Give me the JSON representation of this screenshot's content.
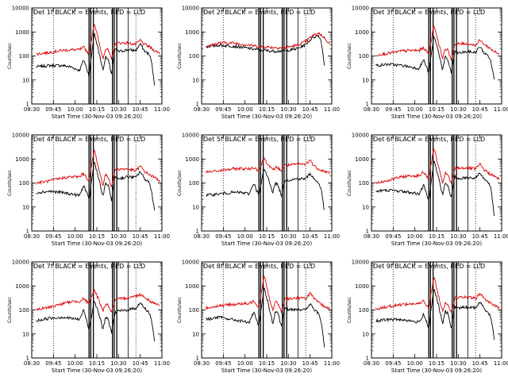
{
  "figure": {
    "yticks": [
      "1",
      "10",
      "100",
      "1000",
      "10000"
    ],
    "xticks": [
      "08:30",
      "09:45",
      "10:00",
      "10:15",
      "10:30",
      "10:45",
      "11:00"
    ],
    "ylabel": "Counts/sec",
    "xlabel": "Start Time (30-Nov-03 09:26:20)",
    "colors": {
      "events": "#000000",
      "lld": "#dd0000"
    }
  },
  "chart_data": [
    {
      "type": "line",
      "title": "Det 1f BLACK = Events, RED = LLD",
      "xlabel": "Start Time (30-Nov-03 09:26:20)",
      "ylabel": "Counts/sec",
      "yscale": "log",
      "ylim": [
        1,
        10000
      ],
      "xlim_minutes": [
        0,
        150
      ],
      "markers_minutes": [
        66,
        68,
        71,
        93,
        95,
        98
      ],
      "series": [
        {
          "name": "Events",
          "color": "#000000",
          "x": [
            5,
            20,
            35,
            45,
            55,
            60,
            66,
            72,
            78,
            82,
            85,
            88,
            92,
            96,
            100,
            110,
            120,
            125,
            130,
            135,
            138,
            142
          ],
          "y": [
            35,
            40,
            40,
            35,
            25,
            70,
            15,
            900,
            120,
            25,
            90,
            70,
            18,
            200,
            150,
            180,
            170,
            320,
            160,
            120,
            60,
            5
          ]
        },
        {
          "name": "LLD",
          "color": "#dd0000",
          "x": [
            5,
            20,
            35,
            45,
            55,
            60,
            66,
            72,
            78,
            82,
            85,
            88,
            92,
            96,
            100,
            110,
            120,
            125,
            130,
            135,
            140,
            148
          ],
          "y": [
            120,
            140,
            170,
            180,
            180,
            230,
            120,
            2500,
            300,
            80,
            200,
            180,
            70,
            320,
            350,
            350,
            300,
            450,
            300,
            250,
            180,
            130
          ]
        }
      ]
    },
    {
      "type": "line",
      "title": "Det 2f BLACK = Events, RED = LLD",
      "xlabel": "Start Time (30-Nov-03 09:26:20)",
      "ylabel": "Counts/sec",
      "yscale": "log",
      "ylim": [
        1,
        10000
      ],
      "xlim_minutes": [
        0,
        150
      ],
      "markers_minutes": [
        66,
        68,
        71,
        93,
        95,
        98
      ],
      "series": [
        {
          "name": "Events",
          "color": "#000000",
          "x": [
            5,
            20,
            35,
            50,
            65,
            80,
            95,
            110,
            120,
            128,
            135,
            138,
            142
          ],
          "y": [
            250,
            280,
            260,
            220,
            180,
            160,
            160,
            200,
            300,
            600,
            700,
            400,
            30
          ]
        },
        {
          "name": "LLD",
          "color": "#dd0000",
          "x": [
            5,
            20,
            35,
            50,
            65,
            80,
            95,
            110,
            120,
            128,
            135,
            142,
            148
          ],
          "y": [
            230,
            350,
            350,
            300,
            250,
            230,
            220,
            280,
            400,
            700,
            900,
            550,
            300
          ]
        }
      ]
    },
    {
      "type": "line",
      "title": "Det 3f BLACK = Events, RED = LLD",
      "xlabel": "Start Time (30-Nov-03 09:26:20)",
      "ylabel": "Counts/sec",
      "yscale": "log",
      "ylim": [
        1,
        10000
      ],
      "xlim_minutes": [
        0,
        150
      ],
      "markers_minutes": [
        66,
        68,
        71,
        93,
        95,
        98
      ],
      "series": [
        {
          "name": "Events",
          "color": "#000000",
          "x": [
            5,
            20,
            35,
            45,
            55,
            60,
            66,
            72,
            78,
            82,
            85,
            88,
            92,
            96,
            100,
            110,
            120,
            125,
            130,
            135,
            138,
            142
          ],
          "y": [
            40,
            45,
            40,
            35,
            30,
            70,
            20,
            700,
            120,
            25,
            90,
            70,
            20,
            150,
            130,
            150,
            140,
            250,
            130,
            100,
            50,
            8
          ]
        },
        {
          "name": "LLD",
          "color": "#dd0000",
          "x": [
            5,
            20,
            35,
            45,
            55,
            60,
            66,
            72,
            78,
            82,
            85,
            88,
            92,
            96,
            100,
            110,
            120,
            125,
            130,
            135,
            140,
            148
          ],
          "y": [
            110,
            130,
            160,
            170,
            170,
            220,
            120,
            2000,
            280,
            80,
            200,
            170,
            70,
            300,
            320,
            330,
            280,
            450,
            300,
            230,
            170,
            110
          ]
        }
      ]
    },
    {
      "type": "line",
      "title": "Det 4f BLACK = Events, RED = LLD",
      "xlabel": "Start Time (30-Nov-03 09:26:20)",
      "ylabel": "Counts/sec",
      "yscale": "log",
      "ylim": [
        1,
        10000
      ],
      "xlim_minutes": [
        0,
        150
      ],
      "markers_minutes": [
        66,
        68,
        71,
        93,
        95,
        98
      ],
      "series": [
        {
          "name": "Events",
          "color": "#000000",
          "x": [
            5,
            20,
            35,
            45,
            55,
            60,
            66,
            72,
            78,
            82,
            85,
            88,
            92,
            96,
            100,
            110,
            120,
            125,
            130,
            135,
            138,
            142
          ],
          "y": [
            40,
            45,
            40,
            35,
            30,
            80,
            20,
            800,
            120,
            25,
            100,
            80,
            20,
            180,
            150,
            180,
            170,
            300,
            150,
            110,
            50,
            5
          ]
        },
        {
          "name": "LLD",
          "color": "#dd0000",
          "x": [
            5,
            20,
            35,
            45,
            55,
            60,
            66,
            72,
            78,
            82,
            85,
            88,
            92,
            96,
            100,
            110,
            120,
            125,
            130,
            135,
            140,
            148
          ],
          "y": [
            100,
            120,
            160,
            180,
            180,
            250,
            120,
            2500,
            300,
            80,
            220,
            180,
            70,
            350,
            380,
            380,
            320,
            500,
            300,
            230,
            180,
            120
          ]
        }
      ]
    },
    {
      "type": "line",
      "title": "Det 5f BLACK = Events, RED = LLD",
      "xlabel": "Start Time (30-Nov-03 09:26:20)",
      "ylabel": "Counts/sec",
      "yscale": "log",
      "ylim": [
        1,
        10000
      ],
      "xlim_minutes": [
        0,
        150
      ],
      "markers_minutes": [
        66,
        68,
        71,
        93,
        95,
        98
      ],
      "series": [
        {
          "name": "Events",
          "color": "#000000",
          "x": [
            5,
            20,
            35,
            45,
            55,
            60,
            66,
            72,
            78,
            82,
            85,
            88,
            92,
            96,
            100,
            110,
            120,
            125,
            130,
            135,
            138,
            142
          ],
          "y": [
            30,
            35,
            40,
            40,
            35,
            100,
            30,
            400,
            120,
            40,
            100,
            80,
            30,
            140,
            130,
            150,
            150,
            250,
            140,
            100,
            50,
            5
          ]
        },
        {
          "name": "LLD",
          "color": "#dd0000",
          "x": [
            5,
            20,
            35,
            45,
            55,
            60,
            66,
            72,
            78,
            82,
            85,
            88,
            92,
            96,
            100,
            110,
            120,
            125,
            130,
            135,
            140,
            148
          ],
          "y": [
            280,
            320,
            380,
            400,
            380,
            450,
            330,
            1100,
            500,
            330,
            450,
            420,
            330,
            550,
            550,
            600,
            600,
            900,
            500,
            380,
            320,
            250
          ]
        }
      ]
    },
    {
      "type": "line",
      "title": "Det 6f BLACK = Events, RED = LLD",
      "xlabel": "Start Time (30-Nov-03 09:26:20)",
      "ylabel": "Counts/sec",
      "yscale": "log",
      "ylim": [
        1,
        10000
      ],
      "xlim_minutes": [
        0,
        150
      ],
      "markers_minutes": [
        66,
        68,
        71,
        93,
        95,
        98
      ],
      "series": [
        {
          "name": "Events",
          "color": "#000000",
          "x": [
            5,
            20,
            35,
            45,
            55,
            60,
            66,
            72,
            78,
            82,
            85,
            88,
            92,
            96,
            100,
            110,
            120,
            125,
            130,
            135,
            138,
            142
          ],
          "y": [
            45,
            50,
            45,
            40,
            35,
            80,
            20,
            900,
            130,
            30,
            100,
            80,
            25,
            180,
            150,
            170,
            160,
            280,
            140,
            100,
            50,
            3
          ]
        },
        {
          "name": "LLD",
          "color": "#dd0000",
          "x": [
            5,
            20,
            35,
            45,
            55,
            60,
            66,
            72,
            78,
            82,
            85,
            88,
            92,
            96,
            100,
            110,
            120,
            125,
            130,
            135,
            140,
            148
          ],
          "y": [
            100,
            130,
            180,
            200,
            200,
            280,
            150,
            3000,
            350,
            100,
            250,
            220,
            90,
            400,
            420,
            430,
            380,
            600,
            350,
            260,
            200,
            140
          ]
        }
      ]
    },
    {
      "type": "line",
      "title": "Det 7f BLACK = Events, RED = LLD",
      "xlabel": "Start Time (30-Nov-03 09:26:20)",
      "ylabel": "Counts/sec",
      "yscale": "log",
      "ylim": [
        1,
        10000
      ],
      "xlim_minutes": [
        0,
        150
      ],
      "markers_minutes": [
        66,
        68,
        71,
        93,
        95,
        98
      ],
      "series": [
        {
          "name": "Events",
          "color": "#000000",
          "x": [
            5,
            20,
            35,
            45,
            55,
            60,
            66,
            72,
            78,
            82,
            85,
            88,
            92,
            96,
            100,
            110,
            120,
            125,
            130,
            135,
            138,
            142
          ],
          "y": [
            35,
            45,
            50,
            45,
            40,
            100,
            15,
            250,
            60,
            15,
            50,
            40,
            12,
            80,
            90,
            100,
            120,
            200,
            120,
            80,
            40,
            4
          ]
        },
        {
          "name": "LLD",
          "color": "#dd0000",
          "x": [
            5,
            20,
            35,
            45,
            55,
            60,
            66,
            72,
            78,
            82,
            85,
            88,
            92,
            96,
            100,
            110,
            120,
            125,
            130,
            135,
            140,
            148
          ],
          "y": [
            100,
            130,
            180,
            220,
            230,
            300,
            170,
            700,
            230,
            90,
            180,
            160,
            80,
            250,
            280,
            320,
            380,
            450,
            350,
            250,
            200,
            160
          ]
        }
      ]
    },
    {
      "type": "line",
      "title": "Det 8f BLACK = Events, RED = LLD",
      "xlabel": "Start Time (30-Nov-03 09:26:20)",
      "ylabel": "Counts/sec",
      "yscale": "log",
      "ylim": [
        1,
        10000
      ],
      "xlim_minutes": [
        0,
        150
      ],
      "markers_minutes": [
        66,
        68,
        71,
        93,
        95,
        98
      ],
      "series": [
        {
          "name": "Events",
          "color": "#000000",
          "x": [
            5,
            20,
            35,
            45,
            55,
            60,
            66,
            72,
            78,
            82,
            85,
            88,
            92,
            96,
            100,
            110,
            120,
            125,
            130,
            135,
            138,
            142
          ],
          "y": [
            40,
            50,
            40,
            35,
            30,
            80,
            20,
            900,
            120,
            25,
            90,
            70,
            20,
            130,
            100,
            110,
            100,
            180,
            100,
            70,
            30,
            2
          ]
        },
        {
          "name": "LLD",
          "color": "#dd0000",
          "x": [
            5,
            20,
            35,
            45,
            55,
            60,
            66,
            72,
            78,
            82,
            85,
            88,
            92,
            96,
            100,
            110,
            120,
            125,
            130,
            135,
            140,
            148
          ],
          "y": [
            120,
            150,
            170,
            180,
            180,
            250,
            130,
            3000,
            320,
            90,
            220,
            190,
            80,
            300,
            300,
            320,
            300,
            500,
            280,
            200,
            150,
            110
          ]
        }
      ]
    },
    {
      "type": "line",
      "title": "Det 9f BLACK = Events, RED = LLD",
      "xlabel": "Start Time (30-Nov-03 09:26:20)",
      "ylabel": "Counts/sec",
      "yscale": "log",
      "ylim": [
        1,
        10000
      ],
      "xlim_minutes": [
        0,
        150
      ],
      "markers_minutes": [
        66,
        68,
        71,
        93,
        95,
        98
      ],
      "series": [
        {
          "name": "Events",
          "color": "#000000",
          "x": [
            5,
            20,
            35,
            45,
            55,
            60,
            66,
            72,
            78,
            82,
            85,
            88,
            92,
            96,
            100,
            110,
            120,
            125,
            130,
            135,
            138,
            142
          ],
          "y": [
            35,
            40,
            40,
            35,
            30,
            70,
            18,
            800,
            120,
            25,
            90,
            70,
            18,
            140,
            120,
            130,
            120,
            220,
            110,
            80,
            40,
            5
          ]
        },
        {
          "name": "LLD",
          "color": "#dd0000",
          "x": [
            5,
            20,
            35,
            45,
            55,
            60,
            66,
            72,
            78,
            82,
            85,
            88,
            92,
            96,
            100,
            110,
            120,
            125,
            130,
            135,
            140,
            148
          ],
          "y": [
            110,
            140,
            170,
            180,
            180,
            240,
            120,
            2500,
            300,
            85,
            210,
            180,
            75,
            320,
            330,
            340,
            300,
            480,
            300,
            220,
            170,
            120
          ]
        }
      ]
    }
  ]
}
